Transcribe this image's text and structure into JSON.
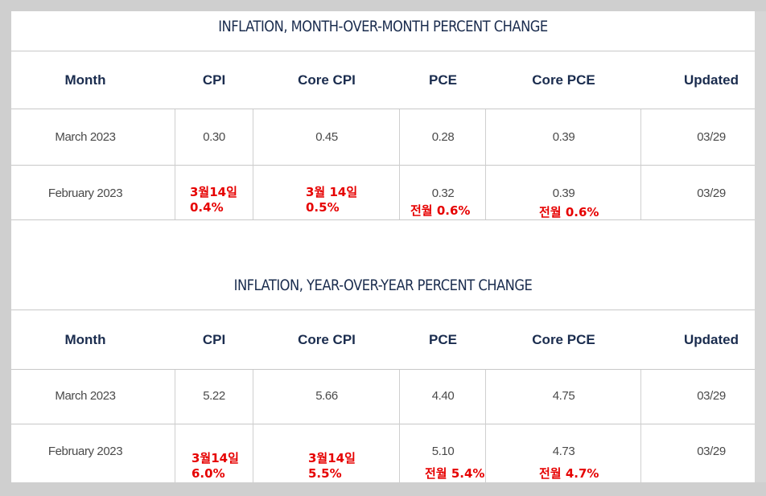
{
  "mom": {
    "title": "INFLATION, MONTH-OVER-MONTH PERCENT CHANGE",
    "headers": [
      "Month",
      "CPI",
      "Core CPI",
      "PCE",
      "Core PCE",
      "Updated"
    ],
    "rows": [
      [
        "March 2023",
        "0.30",
        "0.45",
        "0.28",
        "0.39",
        "03/29"
      ],
      [
        "February 2023",
        "",
        "",
        "0.32",
        "0.39",
        "03/29"
      ]
    ],
    "notes": {
      "cpi": [
        "3월14일",
        "0.4%"
      ],
      "core_cpi": [
        "3월 14일",
        "0.5%"
      ],
      "pce": "전월 0.6%",
      "core_pce": "전월 0.6%"
    }
  },
  "yoy": {
    "title": "INFLATION, YEAR-OVER-YEAR PERCENT CHANGE",
    "headers": [
      "Month",
      "CPI",
      "Core CPI",
      "PCE",
      "Core PCE",
      "Updated"
    ],
    "rows": [
      [
        "March 2023",
        "5.22",
        "5.66",
        "4.40",
        "4.75",
        "03/29"
      ],
      [
        "February 2023",
        "",
        "",
        "5.10",
        "4.73",
        "03/29"
      ]
    ],
    "notes": {
      "cpi": [
        "3월14일",
        "6.0%"
      ],
      "core_cpi": [
        "3월14일",
        "5.5%"
      ],
      "pce": "전월 5.4%",
      "core_pce": "전월 4.7%"
    }
  },
  "colors": {
    "header": "#1a2c4e",
    "annotation": "#e60000"
  }
}
